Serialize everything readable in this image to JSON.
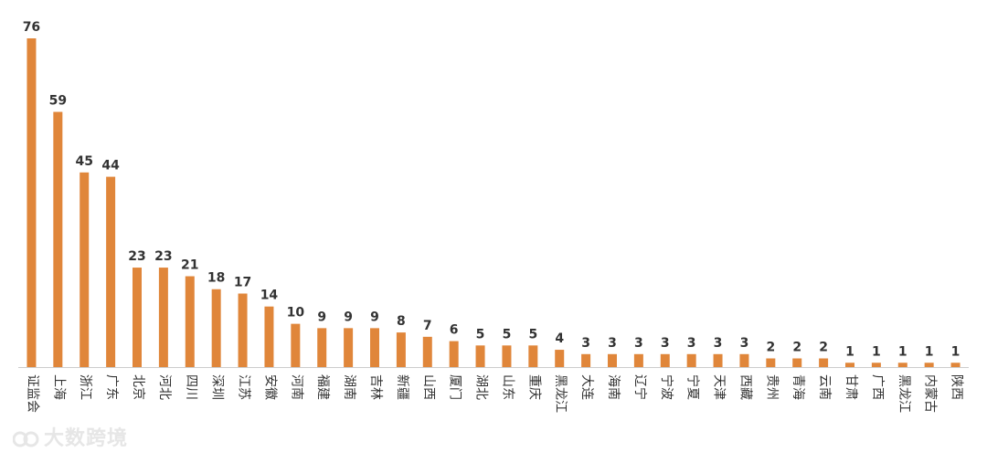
{
  "chart_data": {
    "type": "bar",
    "title": "",
    "xlabel": "",
    "ylabel": "",
    "ylim": [
      0,
      76
    ],
    "grid": false,
    "legend": "none",
    "bar_color": "#E0863A",
    "categories": [
      "证监会",
      "上海",
      "浙江",
      "广东",
      "北京",
      "河北",
      "四川",
      "深圳",
      "江苏",
      "安徽",
      "河南",
      "福建",
      "湖南",
      "吉林",
      "新疆",
      "山西",
      "厦门",
      "湖北",
      "山东",
      "重庆",
      "黑龙江",
      "大连",
      "海南",
      "辽宁",
      "宁波",
      "宁夏",
      "天津",
      "西藏",
      "贵州",
      "青海",
      "云南",
      "甘肃",
      "广西",
      "黑龙江",
      "内蒙古",
      "陕西"
    ],
    "values": [
      76,
      59,
      45,
      44,
      23,
      23,
      21,
      18,
      17,
      14,
      10,
      9,
      9,
      9,
      8,
      7,
      6,
      5,
      5,
      5,
      4,
      3,
      3,
      3,
      3,
      3,
      3,
      3,
      2,
      2,
      2,
      1,
      1,
      1,
      1,
      1
    ]
  },
  "watermark": {
    "text": "大数跨境",
    "logo_icon": "brand-logo-icon"
  }
}
